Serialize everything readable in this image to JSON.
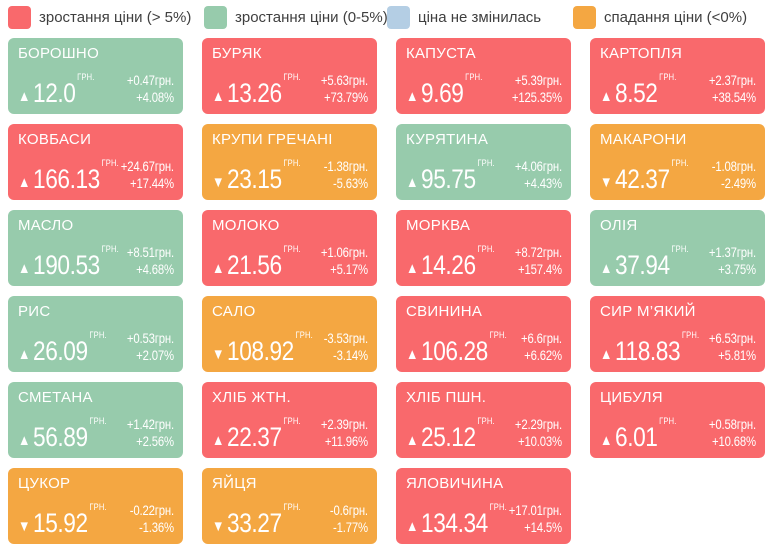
{
  "glyphs": {
    "up": "▲",
    "down": "▼"
  },
  "chart_data": {
    "type": "heatmap",
    "title": "",
    "currency_label": "ГРН.",
    "columns": 4,
    "legend_position": "top",
    "colors": {
      "rise_gt5": "#f9696c",
      "rise_0_5": "#97cbac",
      "no_change": "#b4cee4",
      "fall": "#f4a742"
    },
    "legend": [
      {
        "key": "rise_gt5",
        "label": "зростання ціни (> 5%)",
        "color": "#f9696c"
      },
      {
        "key": "rise_0_5",
        "label": "зростання ціни (0-5%)",
        "color": "#97cbac"
      },
      {
        "key": "no_change",
        "label": "ціна не змінилась",
        "color": "#b4cee4"
      },
      {
        "key": "fall",
        "label": "спадання ціни (<0%)",
        "color": "#f4a742"
      }
    ],
    "items": [
      {
        "name": "БОРОШНО",
        "price_label": "12.0",
        "price": 12.0,
        "change": "+0.47грн.",
        "change_value": 0.47,
        "pct": "+4.08%",
        "pct_value": 4.08,
        "category": "rise_0_5",
        "direction": "up"
      },
      {
        "name": "БУРЯК",
        "price_label": "13.26",
        "price": 13.26,
        "change": "+5.63грн.",
        "change_value": 5.63,
        "pct": "+73.79%",
        "pct_value": 73.79,
        "category": "rise_gt5",
        "direction": "up"
      },
      {
        "name": "КАПУСТА",
        "price_label": "9.69",
        "price": 9.69,
        "change": "+5.39грн.",
        "change_value": 5.39,
        "pct": "+125.35%",
        "pct_value": 125.35,
        "category": "rise_gt5",
        "direction": "up"
      },
      {
        "name": "КАРТОПЛЯ",
        "price_label": "8.52",
        "price": 8.52,
        "change": "+2.37грн.",
        "change_value": 2.37,
        "pct": "+38.54%",
        "pct_value": 38.54,
        "category": "rise_gt5",
        "direction": "up"
      },
      {
        "name": "КОВБАСИ",
        "price_label": "166.13",
        "price": 166.13,
        "change": "+24.67грн.",
        "change_value": 24.67,
        "pct": "+17.44%",
        "pct_value": 17.44,
        "category": "rise_gt5",
        "direction": "up"
      },
      {
        "name": "КРУПИ ГРЕЧАНІ",
        "price_label": "23.15",
        "price": 23.15,
        "change": "-1.38грн.",
        "change_value": -1.38,
        "pct": "-5.63%",
        "pct_value": -5.63,
        "category": "fall",
        "direction": "down"
      },
      {
        "name": "КУРЯТИНА",
        "price_label": "95.75",
        "price": 95.75,
        "change": "+4.06грн.",
        "change_value": 4.06,
        "pct": "+4.43%",
        "pct_value": 4.43,
        "category": "rise_0_5",
        "direction": "up"
      },
      {
        "name": "МАКАРОНИ",
        "price_label": "42.37",
        "price": 42.37,
        "change": "-1.08грн.",
        "change_value": -1.08,
        "pct": "-2.49%",
        "pct_value": -2.49,
        "category": "fall",
        "direction": "down"
      },
      {
        "name": "МАСЛО",
        "price_label": "190.53",
        "price": 190.53,
        "change": "+8.51грн.",
        "change_value": 8.51,
        "pct": "+4.68%",
        "pct_value": 4.68,
        "category": "rise_0_5",
        "direction": "up"
      },
      {
        "name": "МОЛОКО",
        "price_label": "21.56",
        "price": 21.56,
        "change": "+1.06грн.",
        "change_value": 1.06,
        "pct": "+5.17%",
        "pct_value": 5.17,
        "category": "rise_gt5",
        "direction": "up"
      },
      {
        "name": "МОРКВА",
        "price_label": "14.26",
        "price": 14.26,
        "change": "+8.72грн.",
        "change_value": 8.72,
        "pct": "+157.4%",
        "pct_value": 157.4,
        "category": "rise_gt5",
        "direction": "up"
      },
      {
        "name": "ОЛІЯ",
        "price_label": "37.94",
        "price": 37.94,
        "change": "+1.37грн.",
        "change_value": 1.37,
        "pct": "+3.75%",
        "pct_value": 3.75,
        "category": "rise_0_5",
        "direction": "up"
      },
      {
        "name": "РИС",
        "price_label": "26.09",
        "price": 26.09,
        "change": "+0.53грн.",
        "change_value": 0.53,
        "pct": "+2.07%",
        "pct_value": 2.07,
        "category": "rise_0_5",
        "direction": "up"
      },
      {
        "name": "САЛО",
        "price_label": "108.92",
        "price": 108.92,
        "change": "-3.53грн.",
        "change_value": -3.53,
        "pct": "-3.14%",
        "pct_value": -3.14,
        "category": "fall",
        "direction": "down"
      },
      {
        "name": "СВИНИНА",
        "price_label": "106.28",
        "price": 106.28,
        "change": "+6.6грн.",
        "change_value": 6.6,
        "pct": "+6.62%",
        "pct_value": 6.62,
        "category": "rise_gt5",
        "direction": "up"
      },
      {
        "name": "СИР М’ЯКИЙ",
        "price_label": "118.83",
        "price": 118.83,
        "change": "+6.53грн.",
        "change_value": 6.53,
        "pct": "+5.81%",
        "pct_value": 5.81,
        "category": "rise_gt5",
        "direction": "up"
      },
      {
        "name": "СМЕТАНА",
        "price_label": "56.89",
        "price": 56.89,
        "change": "+1.42грн.",
        "change_value": 1.42,
        "pct": "+2.56%",
        "pct_value": 2.56,
        "category": "rise_0_5",
        "direction": "up"
      },
      {
        "name": "ХЛІБ ЖТН.",
        "price_label": "22.37",
        "price": 22.37,
        "change": "+2.39грн.",
        "change_value": 2.39,
        "pct": "+11.96%",
        "pct_value": 11.96,
        "category": "rise_gt5",
        "direction": "up"
      },
      {
        "name": "ХЛІБ ПШН.",
        "price_label": "25.12",
        "price": 25.12,
        "change": "+2.29грн.",
        "change_value": 2.29,
        "pct": "+10.03%",
        "pct_value": 10.03,
        "category": "rise_gt5",
        "direction": "up"
      },
      {
        "name": "ЦИБУЛЯ",
        "price_label": "6.01",
        "price": 6.01,
        "change": "+0.58грн.",
        "change_value": 0.58,
        "pct": "+10.68%",
        "pct_value": 10.68,
        "category": "rise_gt5",
        "direction": "up"
      },
      {
        "name": "ЦУКОР",
        "price_label": "15.92",
        "price": 15.92,
        "change": "-0.22грн.",
        "change_value": -0.22,
        "pct": "-1.36%",
        "pct_value": -1.36,
        "category": "fall",
        "direction": "down"
      },
      {
        "name": "ЯЙЦЯ",
        "price_label": "33.27",
        "price": 33.27,
        "change": "-0.6грн.",
        "change_value": -0.6,
        "pct": "-1.77%",
        "pct_value": -1.77,
        "category": "fall",
        "direction": "down"
      },
      {
        "name": "ЯЛОВИЧИНА",
        "price_label": "134.34",
        "price": 134.34,
        "change": "+17.01грн.",
        "change_value": 17.01,
        "pct": "+14.5%",
        "pct_value": 14.5,
        "category": "rise_gt5",
        "direction": "up"
      }
    ]
  }
}
